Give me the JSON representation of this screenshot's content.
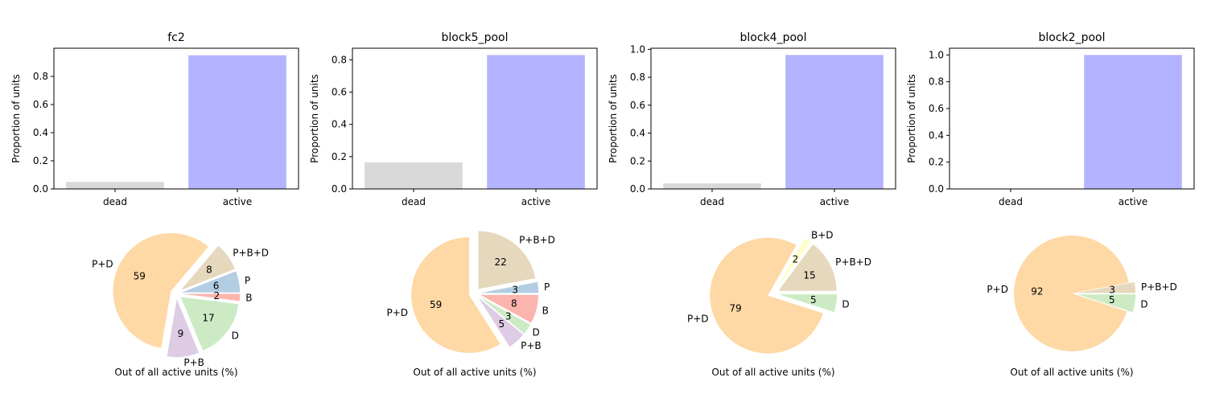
{
  "chart_data": [
    {
      "type": "bar",
      "title": "fc2",
      "categories": [
        "dead",
        "active"
      ],
      "values": [
        0.05,
        0.95
      ],
      "ylabel": "Proportion of units",
      "ylim": [
        0,
        1.0
      ],
      "yticks": [
        "0.0",
        "0.2",
        "0.4",
        "0.6",
        "0.8"
      ],
      "colors": [
        "#d9d9d9",
        "#b3b3ff"
      ]
    },
    {
      "type": "pie",
      "xlabel": "Out of all active units (%)",
      "slices": [
        {
          "label": "P",
          "value": 6,
          "color": "#b3cde3",
          "explode": true
        },
        {
          "label": "P+B+D",
          "value": 8,
          "color": "#e5d8bd",
          "explode": true
        },
        {
          "label": "P+D",
          "value": 59,
          "color": "#fed9a6",
          "explode": true
        },
        {
          "label": "P+B",
          "value": 9,
          "color": "#decbe4",
          "explode": true
        },
        {
          "label": "D",
          "value": 17,
          "color": "#ccebc5",
          "explode": true
        },
        {
          "label": "B",
          "value": 2,
          "color": "#fbb4ae",
          "explode": true
        }
      ]
    },
    {
      "type": "bar",
      "title": "block5_pool",
      "categories": [
        "dead",
        "active"
      ],
      "values": [
        0.165,
        0.83
      ],
      "ylabel": "Proportion of units",
      "ylim": [
        0,
        0.872
      ],
      "yticks": [
        "0.0",
        "0.2",
        "0.4",
        "0.6",
        "0.8"
      ],
      "colors": [
        "#d9d9d9",
        "#b3b3ff"
      ]
    },
    {
      "type": "pie",
      "xlabel": "Out of all active units (%)",
      "slices": [
        {
          "label": "P",
          "value": 3,
          "color": "#b3cde3",
          "explode": true
        },
        {
          "label": "P+B+D",
          "value": 22,
          "color": "#e5d8bd",
          "explode": true
        },
        {
          "label": "P+D",
          "value": 59,
          "color": "#fed9a6",
          "explode": true
        },
        {
          "label": "P+B",
          "value": 5,
          "color": "#decbe4",
          "explode": true
        },
        {
          "label": "D",
          "value": 3,
          "color": "#ccebc5",
          "explode": true
        },
        {
          "label": "B",
          "value": 8,
          "color": "#fbb4ae",
          "explode": true
        }
      ]
    },
    {
      "type": "bar",
      "title": "block4_pool",
      "categories": [
        "dead",
        "active"
      ],
      "values": [
        0.04,
        0.96
      ],
      "ylabel": "Proportion of units",
      "ylim": [
        0,
        1.008
      ],
      "yticks": [
        "0.0",
        "0.2",
        "0.4",
        "0.6",
        "0.8",
        "1.0"
      ],
      "colors": [
        "#d9d9d9",
        "#b3b3ff"
      ]
    },
    {
      "type": "pie",
      "xlabel": "Out of all active units (%)",
      "slices": [
        {
          "label": "P+B+D",
          "value": 15,
          "color": "#e5d8bd",
          "explode": true
        },
        {
          "label": "B+D",
          "value": 2,
          "color": "#ffffcc",
          "explode": true
        },
        {
          "label": "P+D",
          "value": 79,
          "color": "#fed9a6",
          "explode": true
        },
        {
          "label": "D",
          "value": 5,
          "color": "#ccebc5",
          "explode": true
        }
      ]
    },
    {
      "type": "bar",
      "title": "block2_pool",
      "categories": [
        "dead",
        "active"
      ],
      "values": [
        0.0,
        1.0
      ],
      "ylabel": "Proportion of units",
      "ylim": [
        0,
        1.05
      ],
      "yticks": [
        "0.0",
        "0.2",
        "0.4",
        "0.6",
        "0.8",
        "1.0"
      ],
      "colors": [
        "#d9d9d9",
        "#b3b3ff"
      ]
    },
    {
      "type": "pie",
      "xlabel": "Out of all active units (%)",
      "slices": [
        {
          "label": "P+B+D",
          "value": 3,
          "color": "#e5d8bd",
          "explode": true
        },
        {
          "label": "P+D",
          "value": 92,
          "color": "#fed9a6",
          "explode": false
        },
        {
          "label": "D",
          "value": 5,
          "color": "#ccebc5",
          "explode": true
        }
      ]
    }
  ]
}
